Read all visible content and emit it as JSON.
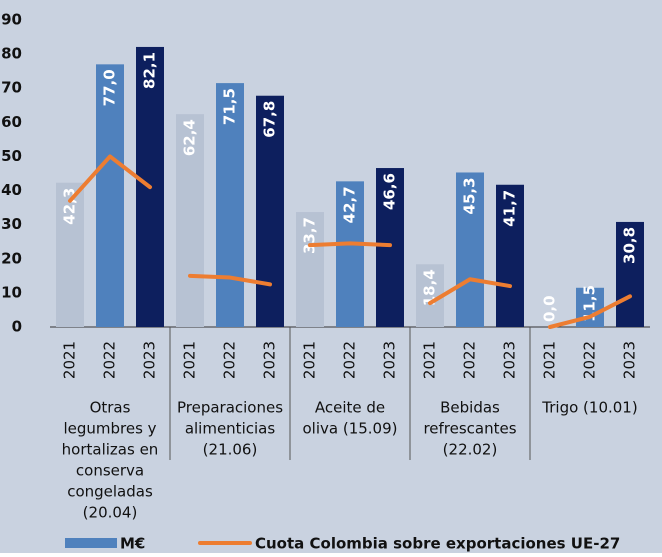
{
  "chart_data": {
    "type": "bar",
    "categories": [
      "2021",
      "2022",
      "2023",
      "2021",
      "2022",
      "2023",
      "2021",
      "2022",
      "2023",
      "2021",
      "2022",
      "2023",
      "2021",
      "2022",
      "2023"
    ],
    "group_labels": [
      [
        "Otras",
        "legumbres y",
        "hortalizas en",
        "conserva",
        "congeladas",
        "(20.04)"
      ],
      [
        "Preparaciones",
        "alimenticias",
        "(21.06)"
      ],
      [
        "Aceite de",
        "oliva  (15.09)"
      ],
      [
        "Bebidas",
        "refrescantes",
        "(22.02)"
      ],
      [
        "Trigo (10.01)"
      ]
    ],
    "series": [
      {
        "name": "M€",
        "color": "#4f81bd",
        "bar_colors": [
          "#b7c2d3",
          "#4f81bd",
          "#0d1f5e"
        ],
        "values": [
          42.3,
          77.0,
          82.1,
          62.4,
          71.5,
          67.8,
          33.7,
          42.7,
          46.6,
          18.4,
          45.3,
          41.7,
          0.0,
          11.5,
          30.8
        ],
        "value_labels": [
          "42,3",
          "77,0",
          "82,1",
          "62,4",
          "71,5",
          "67,8",
          "33,7",
          "42,7",
          "46,6",
          "18,4",
          "45,3",
          "41,7",
          "0,0",
          "11,5",
          "30,8"
        ]
      },
      {
        "name": "Cuota Colombia sobre exportaciones UE-27",
        "type": "line",
        "color": "#ed7d31",
        "values": [
          37,
          50,
          41,
          15,
          14.5,
          12.5,
          24,
          24.5,
          24,
          7,
          14,
          12,
          0,
          3,
          9
        ]
      }
    ],
    "ylim": [
      0,
      90
    ],
    "yticks": [
      0,
      10,
      20,
      30,
      40,
      50,
      60,
      70,
      80,
      90
    ]
  }
}
